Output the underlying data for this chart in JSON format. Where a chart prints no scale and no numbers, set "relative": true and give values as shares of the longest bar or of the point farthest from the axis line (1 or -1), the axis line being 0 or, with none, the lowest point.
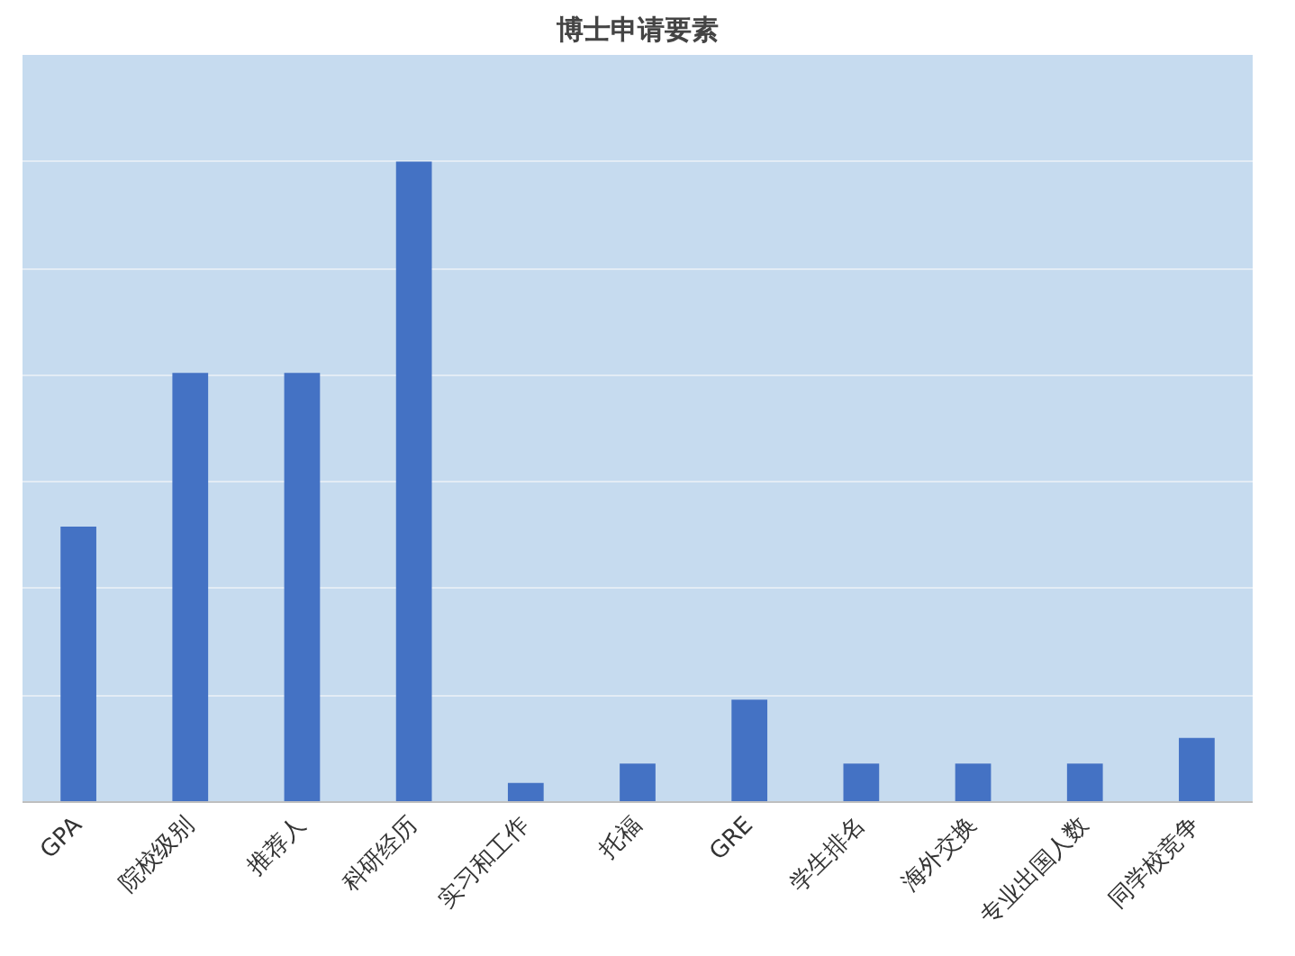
{
  "chart_data": {
    "type": "bar",
    "title": "博士申请要素",
    "relative": true,
    "color": "#4472c4",
    "grid": "y",
    "categories": [
      "GPA",
      "院校级别",
      "推荐人",
      "科研经历",
      "实习和工作",
      "托福",
      "GRE",
      "学生排名",
      "海外交换",
      "专业出国人数",
      "同学校竞争"
    ],
    "values": [
      0.43,
      0.67,
      0.67,
      1,
      0.03,
      0.06,
      0.16,
      0.06,
      0.06,
      0.06,
      0.1
    ]
  }
}
